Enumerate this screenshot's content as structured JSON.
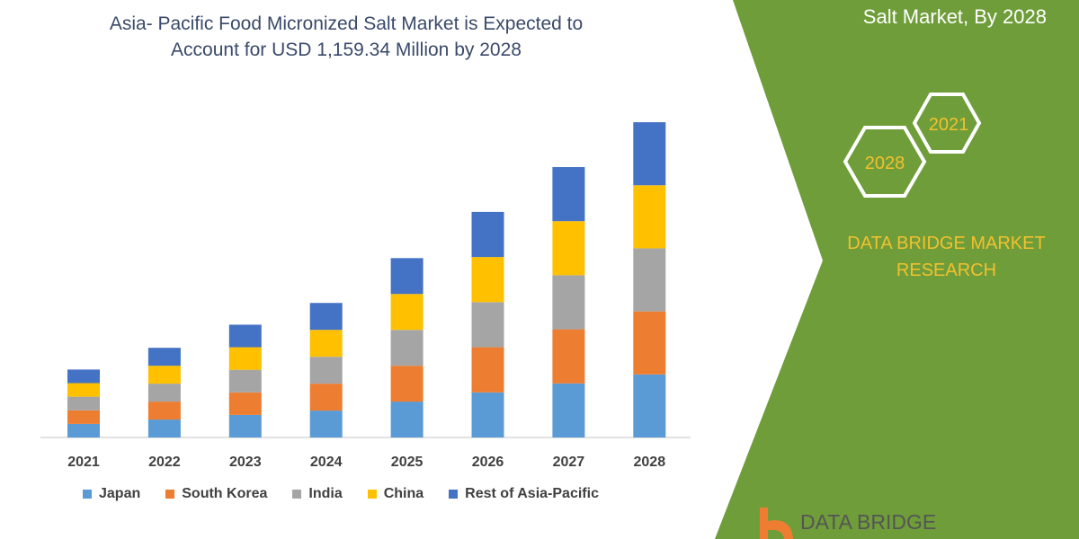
{
  "header": {
    "title_line1": "Asia- Pacific Food Micronized Salt Market is Expected to",
    "title_line2": "Account for USD 1,159.34 Million by 2028",
    "right_caption": "Salt Market, By 2028"
  },
  "badges": {
    "year_a": "2028",
    "year_b": "2021"
  },
  "brand": {
    "line1": "DATA BRIDGE MARKET",
    "line2": "RESEARCH",
    "logo_text": "DATA BRIDGE",
    "watermark": "DATA BRIDGE"
  },
  "colors": {
    "panel_green": "#6f9d3a",
    "gold": "#f2c12e"
  },
  "chart_data": {
    "type": "bar",
    "stacked": true,
    "title": "Asia- Pacific Food Micronized Salt Market is Expected to Account for USD 1,159.34 Million by 2028",
    "categories": [
      "2021",
      "2022",
      "2023",
      "2024",
      "2025",
      "2026",
      "2027",
      "2028"
    ],
    "series": [
      {
        "name": "Japan",
        "color": "#5b9bd5",
        "values": [
          50,
          66,
          83,
          99,
          132,
          166,
          199,
          232
        ]
      },
      {
        "name": "South Korea",
        "color": "#ed7d31",
        "values": [
          50,
          66,
          83,
          99,
          132,
          166,
          199,
          232
        ]
      },
      {
        "name": "India",
        "color": "#a5a5a5",
        "values": [
          50,
          66,
          83,
          99,
          132,
          166,
          199,
          232
        ]
      },
      {
        "name": "China",
        "color": "#ffc000",
        "values": [
          50,
          66,
          83,
          99,
          132,
          166,
          199,
          232
        ]
      },
      {
        "name": "Rest of Asia-Pacific",
        "color": "#4472c4",
        "values": [
          50,
          66,
          83,
          99,
          132,
          166,
          199,
          232
        ]
      }
    ],
    "ylim": [
      0,
      1180
    ],
    "grid": false,
    "legend": "bottom"
  }
}
